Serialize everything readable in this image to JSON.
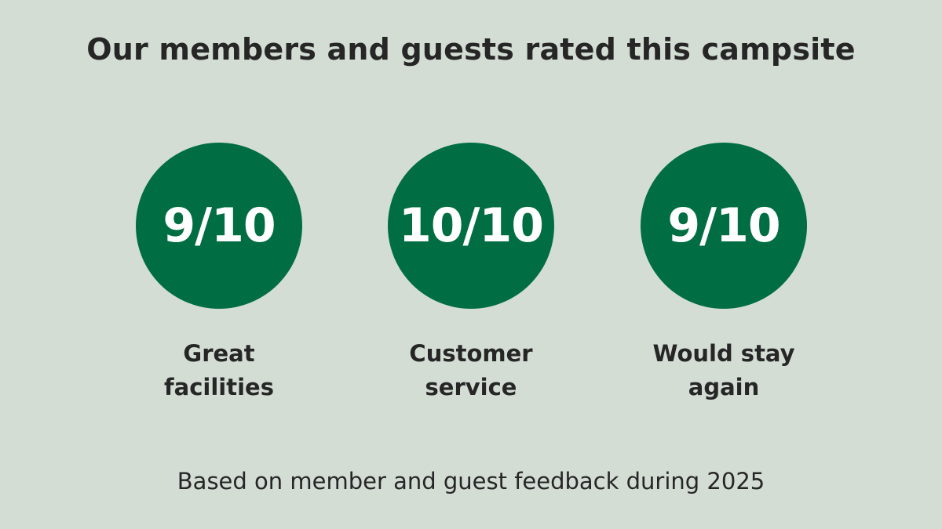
{
  "title": "Our members and guests rated this campsite",
  "colors": {
    "background": "#d3ddd4",
    "circle": "#006e42",
    "text": "#262626",
    "score_text": "#ffffff"
  },
  "ratings": [
    {
      "score": "9/10",
      "label_lines": [
        "Great",
        "facilities"
      ]
    },
    {
      "score": "10/10",
      "label_lines": [
        "Customer",
        "service"
      ]
    },
    {
      "score": "9/10",
      "label_lines": [
        "Would stay",
        "again"
      ]
    }
  ],
  "footnote": "Based on member and guest feedback during 2025"
}
